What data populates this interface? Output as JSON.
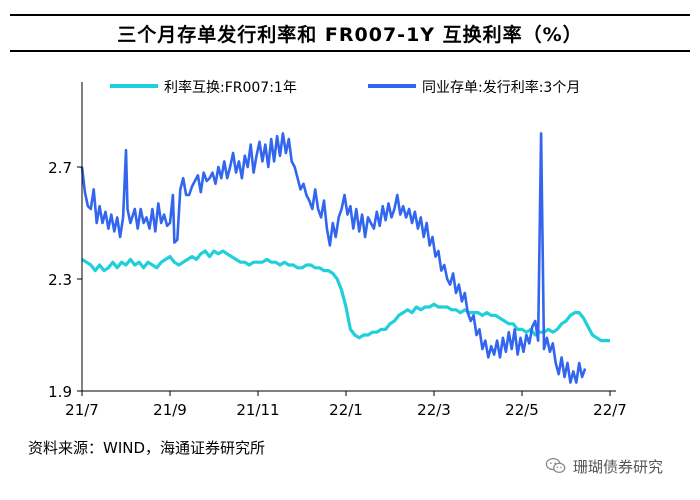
{
  "title": "三个月存单发行利率和 FR007-1Y 互换利率（%）",
  "source": "资料来源：WIND，海通证券研究所",
  "watermark": {
    "text": "珊瑚债券研究",
    "icon": "wechat-icon"
  },
  "chart_data": {
    "type": "line",
    "title": "三个月存单发行利率和 FR007-1Y 互换利率（%）",
    "xlabel": "",
    "ylabel": "",
    "x_ticks": [
      "21/7",
      "21/9",
      "21/11",
      "22/1",
      "22/3",
      "22/5",
      "22/7"
    ],
    "y_ticks": [
      1.9,
      2.3,
      2.7
    ],
    "ylim": [
      1.9,
      2.7
    ],
    "grid": false,
    "legend": "top",
    "series": [
      {
        "name": "利率互换:FR007:1年",
        "color": "#1fd0dc",
        "points": [
          [
            0,
            2.37
          ],
          [
            3,
            2.36
          ],
          [
            6,
            2.35
          ],
          [
            9,
            2.33
          ],
          [
            12,
            2.35
          ],
          [
            15,
            2.33
          ],
          [
            18,
            2.34
          ],
          [
            21,
            2.36
          ],
          [
            24,
            2.34
          ],
          [
            27,
            2.36
          ],
          [
            30,
            2.35
          ],
          [
            33,
            2.37
          ],
          [
            36,
            2.35
          ],
          [
            39,
            2.36
          ],
          [
            42,
            2.34
          ],
          [
            45,
            2.36
          ],
          [
            48,
            2.35
          ],
          [
            51,
            2.34
          ],
          [
            54,
            2.36
          ],
          [
            57,
            2.37
          ],
          [
            60,
            2.38
          ],
          [
            63,
            2.36
          ],
          [
            66,
            2.35
          ],
          [
            69,
            2.36
          ],
          [
            72,
            2.37
          ],
          [
            75,
            2.38
          ],
          [
            78,
            2.37
          ],
          [
            81,
            2.39
          ],
          [
            84,
            2.4
          ],
          [
            87,
            2.38
          ],
          [
            90,
            2.4
          ],
          [
            93,
            2.39
          ],
          [
            96,
            2.4
          ],
          [
            99,
            2.39
          ],
          [
            102,
            2.38
          ],
          [
            105,
            2.37
          ],
          [
            108,
            2.36
          ],
          [
            111,
            2.36
          ],
          [
            114,
            2.35
          ],
          [
            117,
            2.36
          ],
          [
            120,
            2.36
          ],
          [
            123,
            2.36
          ],
          [
            126,
            2.37
          ],
          [
            129,
            2.36
          ],
          [
            132,
            2.36
          ],
          [
            135,
            2.35
          ],
          [
            138,
            2.36
          ],
          [
            141,
            2.35
          ],
          [
            144,
            2.35
          ],
          [
            147,
            2.34
          ],
          [
            150,
            2.34
          ],
          [
            153,
            2.35
          ],
          [
            156,
            2.35
          ],
          [
            159,
            2.34
          ],
          [
            162,
            2.34
          ],
          [
            165,
            2.33
          ],
          [
            168,
            2.33
          ],
          [
            171,
            2.32
          ],
          [
            174,
            2.3
          ],
          [
            177,
            2.26
          ],
          [
            180,
            2.2
          ],
          [
            183,
            2.12
          ],
          [
            186,
            2.1
          ],
          [
            189,
            2.09
          ],
          [
            192,
            2.1
          ],
          [
            195,
            2.1
          ],
          [
            198,
            2.11
          ],
          [
            201,
            2.11
          ],
          [
            204,
            2.12
          ],
          [
            207,
            2.12
          ],
          [
            210,
            2.14
          ],
          [
            213,
            2.15
          ],
          [
            216,
            2.17
          ],
          [
            219,
            2.18
          ],
          [
            222,
            2.19
          ],
          [
            225,
            2.18
          ],
          [
            228,
            2.2
          ],
          [
            231,
            2.19
          ],
          [
            234,
            2.2
          ],
          [
            237,
            2.2
          ],
          [
            240,
            2.21
          ],
          [
            243,
            2.2
          ],
          [
            246,
            2.2
          ],
          [
            249,
            2.2
          ],
          [
            252,
            2.19
          ],
          [
            255,
            2.19
          ],
          [
            258,
            2.18
          ],
          [
            261,
            2.19
          ],
          [
            264,
            2.18
          ],
          [
            267,
            2.18
          ],
          [
            270,
            2.18
          ],
          [
            273,
            2.17
          ],
          [
            276,
            2.18
          ],
          [
            279,
            2.17
          ],
          [
            282,
            2.17
          ],
          [
            285,
            2.16
          ],
          [
            288,
            2.15
          ],
          [
            291,
            2.14
          ],
          [
            294,
            2.14
          ],
          [
            297,
            2.12
          ],
          [
            300,
            2.12
          ],
          [
            303,
            2.11
          ],
          [
            306,
            2.12
          ],
          [
            309,
            2.1
          ],
          [
            312,
            2.11
          ],
          [
            315,
            2.11
          ],
          [
            318,
            2.12
          ],
          [
            321,
            2.11
          ],
          [
            324,
            2.12
          ],
          [
            327,
            2.14
          ],
          [
            330,
            2.15
          ],
          [
            333,
            2.17
          ],
          [
            336,
            2.18
          ],
          [
            339,
            2.18
          ],
          [
            342,
            2.16
          ],
          [
            345,
            2.13
          ],
          [
            348,
            2.1
          ],
          [
            351,
            2.09
          ],
          [
            354,
            2.08
          ],
          [
            357,
            2.08
          ],
          [
            360,
            2.08
          ]
        ]
      },
      {
        "name": "同业存单:发行利率:3个月",
        "color": "#3366ee",
        "points": [
          [
            0,
            2.7
          ],
          [
            2,
            2.61
          ],
          [
            4,
            2.56
          ],
          [
            6,
            2.55
          ],
          [
            8,
            2.62
          ],
          [
            10,
            2.5
          ],
          [
            12,
            2.56
          ],
          [
            14,
            2.5
          ],
          [
            16,
            2.54
          ],
          [
            18,
            2.48
          ],
          [
            20,
            2.53
          ],
          [
            22,
            2.47
          ],
          [
            24,
            2.52
          ],
          [
            26,
            2.45
          ],
          [
            28,
            2.52
          ],
          [
            30,
            2.76
          ],
          [
            31,
            2.55
          ],
          [
            33,
            2.5
          ],
          [
            36,
            2.55
          ],
          [
            38,
            2.48
          ],
          [
            40,
            2.55
          ],
          [
            42,
            2.5
          ],
          [
            44,
            2.52
          ],
          [
            46,
            2.48
          ],
          [
            48,
            2.55
          ],
          [
            50,
            2.47
          ],
          [
            52,
            2.57
          ],
          [
            54,
            2.5
          ],
          [
            56,
            2.53
          ],
          [
            58,
            2.49
          ],
          [
            60,
            2.5
          ],
          [
            62,
            2.6
          ],
          [
            63,
            2.43
          ],
          [
            65,
            2.44
          ],
          [
            67,
            2.62
          ],
          [
            69,
            2.66
          ],
          [
            71,
            2.6
          ],
          [
            73,
            2.6
          ],
          [
            75,
            2.63
          ],
          [
            77,
            2.65
          ],
          [
            79,
            2.67
          ],
          [
            81,
            2.61
          ],
          [
            83,
            2.68
          ],
          [
            85,
            2.65
          ],
          [
            87,
            2.66
          ],
          [
            89,
            2.68
          ],
          [
            91,
            2.64
          ],
          [
            93,
            2.7
          ],
          [
            95,
            2.66
          ],
          [
            97,
            2.72
          ],
          [
            99,
            2.66
          ],
          [
            101,
            2.7
          ],
          [
            103,
            2.75
          ],
          [
            105,
            2.68
          ],
          [
            107,
            2.72
          ],
          [
            109,
            2.66
          ],
          [
            111,
            2.74
          ],
          [
            113,
            2.7
          ],
          [
            115,
            2.78
          ],
          [
            117,
            2.68
          ],
          [
            119,
            2.74
          ],
          [
            121,
            2.79
          ],
          [
            123,
            2.72
          ],
          [
            125,
            2.78
          ],
          [
            127,
            2.7
          ],
          [
            129,
            2.8
          ],
          [
            131,
            2.72
          ],
          [
            133,
            2.81
          ],
          [
            135,
            2.74
          ],
          [
            137,
            2.82
          ],
          [
            139,
            2.75
          ],
          [
            141,
            2.8
          ],
          [
            143,
            2.72
          ],
          [
            145,
            2.7
          ],
          [
            147,
            2.66
          ],
          [
            149,
            2.62
          ],
          [
            151,
            2.64
          ],
          [
            153,
            2.6
          ],
          [
            155,
            2.58
          ],
          [
            157,
            2.55
          ],
          [
            159,
            2.62
          ],
          [
            161,
            2.55
          ],
          [
            163,
            2.52
          ],
          [
            165,
            2.58
          ],
          [
            167,
            2.48
          ],
          [
            169,
            2.42
          ],
          [
            171,
            2.5
          ],
          [
            173,
            2.45
          ],
          [
            175,
            2.52
          ],
          [
            177,
            2.55
          ],
          [
            179,
            2.6
          ],
          [
            181,
            2.53
          ],
          [
            183,
            2.56
          ],
          [
            185,
            2.48
          ],
          [
            187,
            2.55
          ],
          [
            189,
            2.47
          ],
          [
            191,
            2.53
          ],
          [
            193,
            2.45
          ],
          [
            195,
            2.52
          ],
          [
            197,
            2.5
          ],
          [
            199,
            2.48
          ],
          [
            201,
            2.54
          ],
          [
            203,
            2.49
          ],
          [
            205,
            2.56
          ],
          [
            207,
            2.51
          ],
          [
            209,
            2.57
          ],
          [
            211,
            2.52
          ],
          [
            213,
            2.55
          ],
          [
            215,
            2.6
          ],
          [
            217,
            2.53
          ],
          [
            219,
            2.56
          ],
          [
            221,
            2.52
          ],
          [
            223,
            2.55
          ],
          [
            225,
            2.5
          ],
          [
            227,
            2.54
          ],
          [
            229,
            2.48
          ],
          [
            231,
            2.52
          ],
          [
            233,
            2.45
          ],
          [
            235,
            2.5
          ],
          [
            237,
            2.42
          ],
          [
            239,
            2.45
          ],
          [
            241,
            2.38
          ],
          [
            243,
            2.4
          ],
          [
            245,
            2.33
          ],
          [
            247,
            2.35
          ],
          [
            249,
            2.3
          ],
          [
            251,
            2.28
          ],
          [
            253,
            2.32
          ],
          [
            255,
            2.25
          ],
          [
            257,
            2.28
          ],
          [
            259,
            2.22
          ],
          [
            261,
            2.25
          ],
          [
            263,
            2.18
          ],
          [
            265,
            2.15
          ],
          [
            267,
            2.17
          ],
          [
            269,
            2.1
          ],
          [
            271,
            2.12
          ],
          [
            273,
            2.05
          ],
          [
            275,
            2.08
          ],
          [
            277,
            2.02
          ],
          [
            279,
            2.06
          ],
          [
            281,
            2.03
          ],
          [
            283,
            2.08
          ],
          [
            285,
            2.02
          ],
          [
            287,
            2.09
          ],
          [
            289,
            2.04
          ],
          [
            291,
            2.11
          ],
          [
            293,
            2.05
          ],
          [
            295,
            2.12
          ],
          [
            297,
            2.03
          ],
          [
            299,
            2.09
          ],
          [
            301,
            2.04
          ],
          [
            303,
            2.1
          ],
          [
            305,
            2.07
          ],
          [
            307,
            2.13
          ],
          [
            309,
            2.15
          ],
          [
            311,
            2.08
          ],
          [
            313,
            2.82
          ],
          [
            315,
            2.05
          ],
          [
            317,
            2.09
          ],
          [
            319,
            2.04
          ],
          [
            321,
            2.07
          ],
          [
            323,
            2.0
          ],
          [
            325,
            1.96
          ],
          [
            327,
            2.02
          ],
          [
            329,
            1.95
          ],
          [
            331,
            2.0
          ],
          [
            333,
            1.93
          ],
          [
            335,
            1.97
          ],
          [
            337,
            1.93
          ],
          [
            339,
            2.0
          ],
          [
            341,
            1.95
          ],
          [
            343,
            1.98
          ]
        ]
      }
    ]
  }
}
